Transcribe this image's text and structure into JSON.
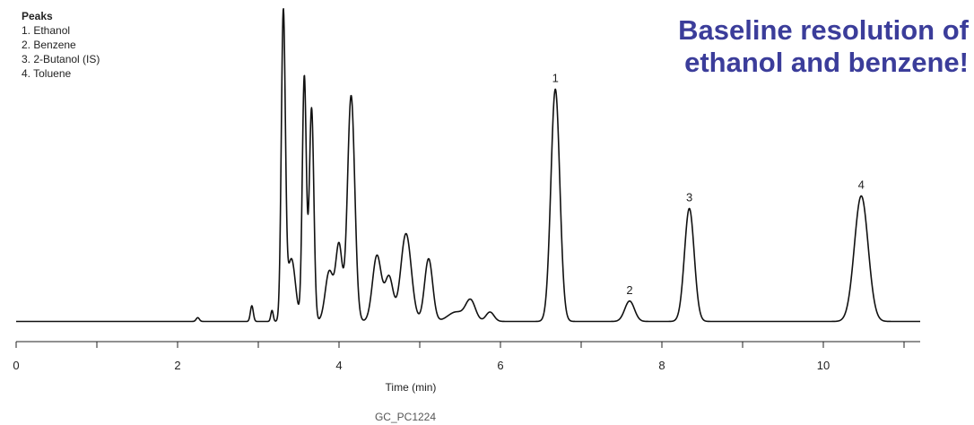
{
  "chart_data": {
    "type": "line",
    "xlabel": "Time (min)",
    "ylabel": "",
    "xlim": [
      0,
      11.2
    ],
    "ylim": [
      0,
      100
    ],
    "x_ticks": [
      0,
      2,
      4,
      6,
      8,
      10
    ],
    "grid": false,
    "y_axis_shown": false,
    "line_color": "#111111",
    "headline": [
      "Baseline resolution of",
      "ethanol and benzene!"
    ],
    "legend": {
      "title": "Peaks",
      "items": [
        "1. Ethanol",
        "2. Benzene",
        "3. 2-Butanol (IS)",
        "4. Toluene"
      ],
      "placement": "top-left"
    },
    "footnote": "GC_PC1224",
    "baseline": 1,
    "peaks": [
      {
        "x": 2.25,
        "y": 1.2,
        "w": 0.02
      },
      {
        "x": 2.92,
        "y": 5,
        "w": 0.018
      },
      {
        "x": 3.17,
        "y": 3.5,
        "w": 0.015
      },
      {
        "x": 3.31,
        "y": 97,
        "w": 0.025
      },
      {
        "x": 3.41,
        "y": 20,
        "w": 0.05
      },
      {
        "x": 3.57,
        "y": 78,
        "w": 0.025
      },
      {
        "x": 3.66,
        "y": 68,
        "w": 0.028
      },
      {
        "x": 3.88,
        "y": 16,
        "w": 0.05
      },
      {
        "x": 4.0,
        "y": 24,
        "w": 0.04
      },
      {
        "x": 4.15,
        "y": 72,
        "w": 0.045
      },
      {
        "x": 4.47,
        "y": 21,
        "w": 0.055
      },
      {
        "x": 4.62,
        "y": 14,
        "w": 0.05
      },
      {
        "x": 4.83,
        "y": 28,
        "w": 0.065
      },
      {
        "x": 5.11,
        "y": 20,
        "w": 0.05
      },
      {
        "x": 5.45,
        "y": 3,
        "w": 0.1
      },
      {
        "x": 5.63,
        "y": 6.5,
        "w": 0.06
      },
      {
        "x": 5.87,
        "y": 3,
        "w": 0.05
      },
      {
        "x": 6.68,
        "y": 74,
        "w": 0.055
      },
      {
        "x": 7.6,
        "y": 6.5,
        "w": 0.06
      },
      {
        "x": 8.34,
        "y": 36,
        "w": 0.06
      },
      {
        "x": 10.47,
        "y": 40,
        "w": 0.085
      }
    ],
    "peak_labels": [
      {
        "label": "1",
        "x": 6.68,
        "y": 74
      },
      {
        "label": "2",
        "x": 7.6,
        "y": 6.5
      },
      {
        "label": "3",
        "x": 8.34,
        "y": 36
      },
      {
        "label": "4",
        "x": 10.47,
        "y": 40
      }
    ]
  }
}
